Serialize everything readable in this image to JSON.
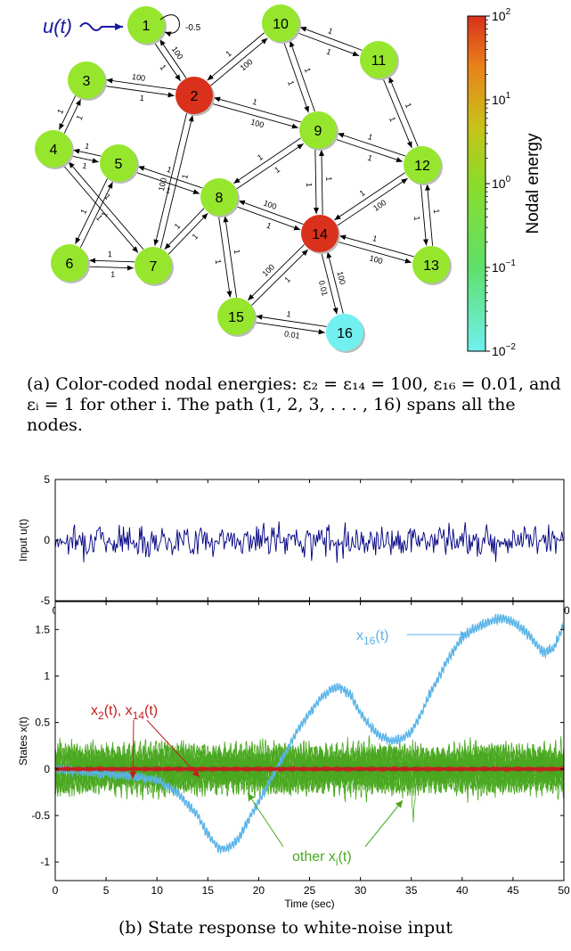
{
  "graph": {
    "input_label": "u(t)",
    "self_loop_weight": "-0.5",
    "nodes": [
      {
        "id": "1",
        "energy": 1
      },
      {
        "id": "2",
        "energy": 100
      },
      {
        "id": "3",
        "energy": 1
      },
      {
        "id": "4",
        "energy": 1
      },
      {
        "id": "5",
        "energy": 1
      },
      {
        "id": "6",
        "energy": 1
      },
      {
        "id": "7",
        "energy": 1
      },
      {
        "id": "8",
        "energy": 1
      },
      {
        "id": "9",
        "energy": 1
      },
      {
        "id": "10",
        "energy": 1
      },
      {
        "id": "11",
        "energy": 1
      },
      {
        "id": "12",
        "energy": 1
      },
      {
        "id": "13",
        "energy": 1
      },
      {
        "id": "14",
        "energy": 100
      },
      {
        "id": "15",
        "energy": 1
      },
      {
        "id": "16",
        "energy": 0.01
      }
    ],
    "edges": [
      {
        "a": "1",
        "b": "2",
        "ab": "1",
        "ba": "100"
      },
      {
        "a": "2",
        "b": "3",
        "ab": "100",
        "ba": "1"
      },
      {
        "a": "2",
        "b": "10",
        "ab": "100",
        "ba": "1"
      },
      {
        "a": "2",
        "b": "9",
        "ab": "100",
        "ba": "1"
      },
      {
        "a": "2",
        "b": "7",
        "ab": "100",
        "ba": "1"
      },
      {
        "a": "3",
        "b": "4",
        "ab": "1",
        "ba": "1"
      },
      {
        "a": "4",
        "b": "5",
        "ab": "1",
        "ba": "1"
      },
      {
        "a": "4",
        "b": "7",
        "ab": "1",
        "ba": "1"
      },
      {
        "a": "5",
        "b": "6",
        "ab": "1",
        "ba": "1"
      },
      {
        "a": "5",
        "b": "8",
        "ab": "1",
        "ba": "1"
      },
      {
        "a": "6",
        "b": "7",
        "ab": "1",
        "ba": "1"
      },
      {
        "a": "7",
        "b": "8",
        "ab": "1",
        "ba": "1"
      },
      {
        "a": "8",
        "b": "9",
        "ab": "1",
        "ba": "1"
      },
      {
        "a": "8",
        "b": "14",
        "ab": "1",
        "ba": "100"
      },
      {
        "a": "8",
        "b": "15",
        "ab": "1",
        "ba": "1"
      },
      {
        "a": "9",
        "b": "10",
        "ab": "1",
        "ba": "1"
      },
      {
        "a": "9",
        "b": "12",
        "ab": "1",
        "ba": "1"
      },
      {
        "a": "9",
        "b": "14",
        "ab": "1",
        "ba": "1"
      },
      {
        "a": "10",
        "b": "11",
        "ab": "1",
        "ba": "1"
      },
      {
        "a": "11",
        "b": "12",
        "ab": "1",
        "ba": "1"
      },
      {
        "a": "12",
        "b": "13",
        "ab": "1",
        "ba": "1"
      },
      {
        "a": "12",
        "b": "14",
        "ab": "1",
        "ba": "100"
      },
      {
        "a": "13",
        "b": "14",
        "ab": "1",
        "ba": "100"
      },
      {
        "a": "14",
        "b": "15",
        "ab": "100",
        "ba": "1"
      },
      {
        "a": "14",
        "b": "16",
        "ab": "0.01",
        "ba": "100"
      },
      {
        "a": "15",
        "b": "16",
        "ab": "0.01",
        "ba": "1"
      }
    ],
    "colorbar": {
      "label": "Nodal energy",
      "ticks": [
        {
          "base": "10",
          "exp": "2"
        },
        {
          "base": "10",
          "exp": "1"
        },
        {
          "base": "10",
          "exp": "0"
        },
        {
          "base": "10",
          "exp": "−1"
        },
        {
          "base": "10",
          "exp": "−2"
        }
      ],
      "colors": [
        "#d9311c",
        "#e8821a",
        "#c8c21a",
        "#8bdc2a",
        "#5fe06a",
        "#6ff0f0"
      ]
    },
    "node_colors": {
      "high": "#d9311c",
      "normal": "#95e62d",
      "low": "#72f0f0"
    }
  },
  "captions": {
    "a": "(a) Color-coded nodal energies: ε₂ = ε₁₄ = 100, ε₁₆ = 0.01, and εᵢ = 1 for other i. The path (1, 2, 3, . . . , 16) spans all the nodes.",
    "b": "(b) State response to white-noise input"
  },
  "chart_data": [
    {
      "type": "line",
      "ylabel": "Input u(t)",
      "xlabel": "",
      "xlim": [
        0,
        50
      ],
      "ylim": [
        -5,
        5
      ],
      "xticks": [
        "0",
        "5",
        "10",
        "15",
        "20",
        "25",
        "30",
        "35",
        "40",
        "45",
        "50"
      ],
      "yticks": [
        "5",
        "0",
        "-5"
      ],
      "series": [
        {
          "name": "",
          "color": "#000080",
          "description_range": [
            -3.6,
            3.0
          ]
        }
      ]
    },
    {
      "type": "line",
      "ylabel": "States x(t)",
      "xlabel": "Time (sec)",
      "xlim": [
        0,
        50
      ],
      "ylim": [
        -1.2,
        1.8
      ],
      "xticks": [
        "0",
        "5",
        "10",
        "15",
        "20",
        "25",
        "30",
        "35",
        "40",
        "45",
        "50"
      ],
      "yticks": [
        "1.5",
        "1",
        "0.5",
        "0",
        "-0.5",
        "-1"
      ],
      "annotations": [
        {
          "text": "x16(t)",
          "main": "x",
          "sub": "16",
          "tail": "(t)",
          "color": "#5ab4e8"
        },
        {
          "text": "x2(t), x14(t)",
          "color": "#c0201e"
        },
        {
          "text": "other xi(t)",
          "main": "other x",
          "sub": "i",
          "tail": "(t)",
          "color": "#4aa820"
        }
      ],
      "series": [
        {
          "name": "x16",
          "color": "#5ab4e8",
          "x": [
            0,
            2,
            5,
            8,
            10,
            12,
            14,
            15,
            16,
            17,
            18,
            19,
            20,
            21,
            22,
            23,
            24,
            25,
            26,
            27,
            28,
            29,
            30,
            31,
            32,
            33,
            34,
            35,
            36,
            37,
            38,
            39,
            40,
            41,
            42,
            43,
            44,
            45,
            46,
            47,
            48,
            49,
            50
          ],
          "y": [
            0,
            -0.02,
            -0.05,
            -0.08,
            -0.12,
            -0.25,
            -0.5,
            -0.7,
            -0.85,
            -0.85,
            -0.75,
            -0.55,
            -0.35,
            -0.15,
            0.05,
            0.25,
            0.45,
            0.6,
            0.75,
            0.85,
            0.88,
            0.8,
            0.6,
            0.45,
            0.35,
            0.3,
            0.32,
            0.4,
            0.6,
            0.85,
            1.05,
            1.25,
            1.4,
            1.5,
            1.55,
            1.6,
            1.62,
            1.58,
            1.5,
            1.38,
            1.25,
            1.3,
            1.55
          ]
        },
        {
          "name": "x2, x14",
          "color": "#c0201e",
          "x": [
            0,
            50
          ],
          "y": [
            0,
            0
          ]
        },
        {
          "name": "other xi",
          "color": "#4aa820",
          "envelope": 0.5
        }
      ]
    }
  ]
}
